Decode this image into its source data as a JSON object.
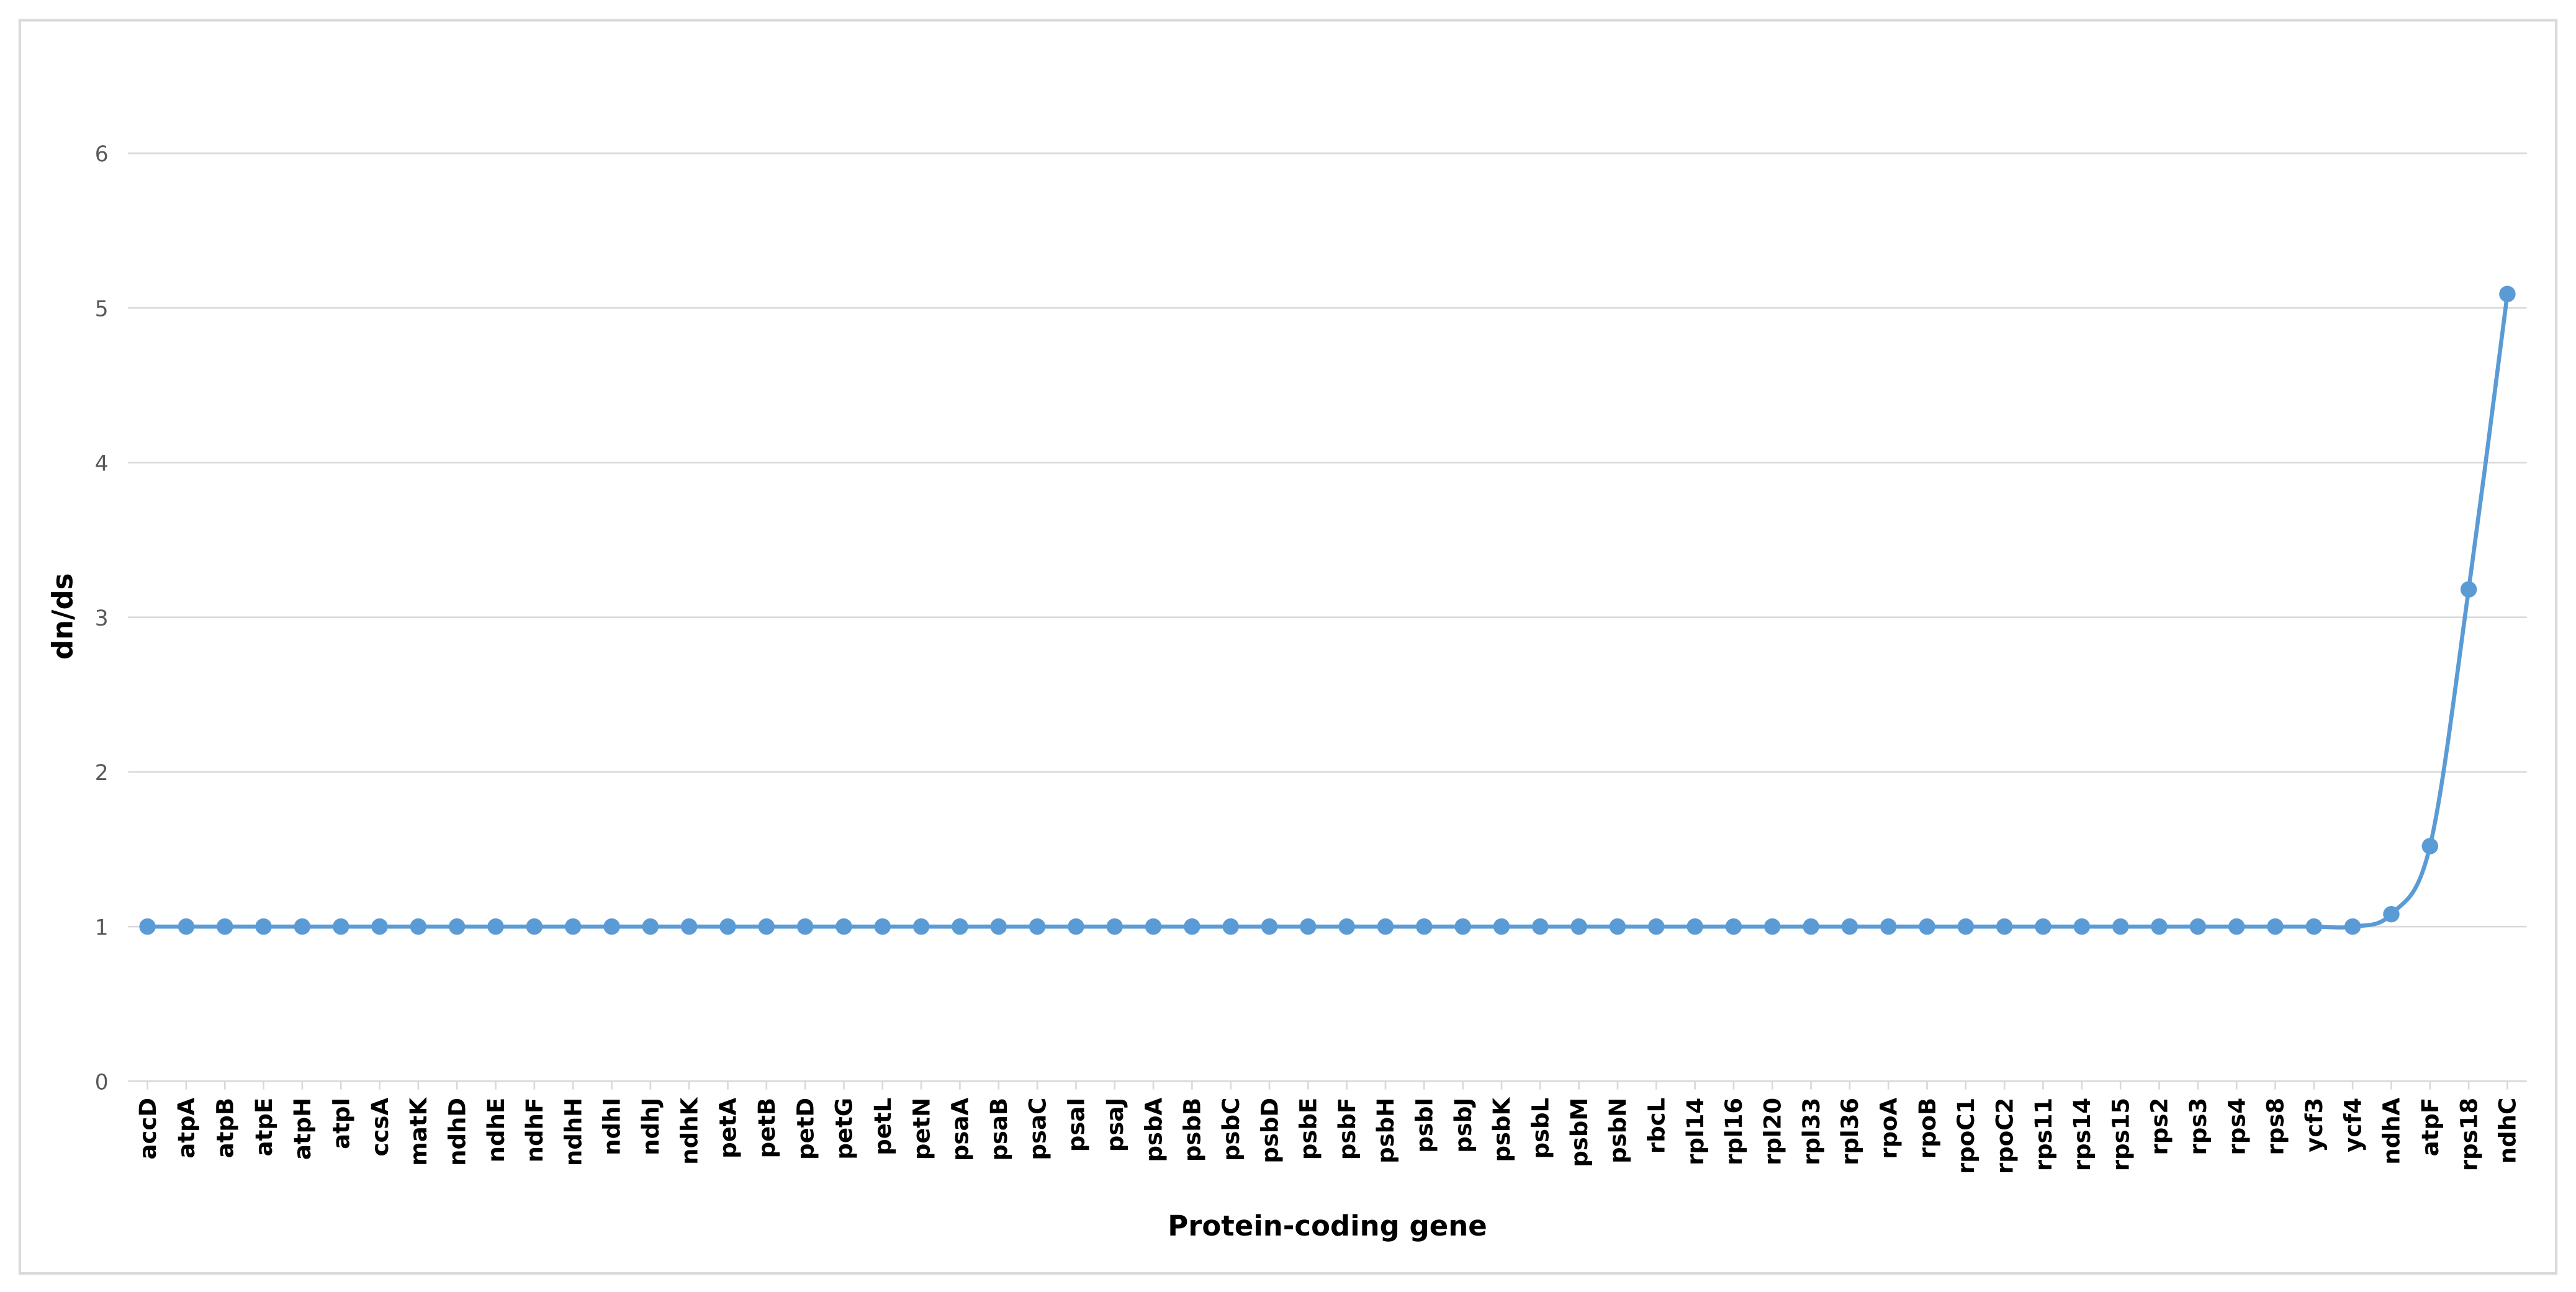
{
  "chart_data": {
    "type": "line",
    "x_label": "Protein-coding gene",
    "y_label": "dn/ds",
    "categories": [
      "accD",
      "atpA",
      "atpB",
      "atpE",
      "atpH",
      "atpI",
      "ccsA",
      "matK",
      "ndhD",
      "ndhE",
      "ndhF",
      "ndhH",
      "ndhI",
      "ndhJ",
      "ndhK",
      "petA",
      "petB",
      "petD",
      "petG",
      "petL",
      "petN",
      "psaA",
      "psaB",
      "psaC",
      "psaI",
      "psaJ",
      "psbA",
      "psbB",
      "psbC",
      "psbD",
      "psbE",
      "psbF",
      "psbH",
      "psbI",
      "psbJ",
      "psbK",
      "psbL",
      "psbM",
      "psbN",
      "rbcL",
      "rpl14",
      "rpl16",
      "rpl20",
      "rpl33",
      "rpl36",
      "rpoA",
      "rpoB",
      "rpoC1",
      "rpoC2",
      "rps11",
      "rps14",
      "rps15",
      "rps2",
      "rps3",
      "rps4",
      "rps8",
      "ycf3",
      "ycf4",
      "ndhA",
      "atpF",
      "rps18",
      "ndhC"
    ],
    "values": [
      1,
      1,
      1,
      1,
      1,
      1,
      1,
      1,
      1,
      1,
      1,
      1,
      1,
      1,
      1,
      1,
      1,
      1,
      1,
      1,
      1,
      1,
      1,
      1,
      1,
      1,
      1,
      1,
      1,
      1,
      1,
      1,
      1,
      1,
      1,
      1,
      1,
      1,
      1,
      1,
      1,
      1,
      1,
      1,
      1,
      1,
      1,
      1,
      1,
      1,
      1,
      1,
      1,
      1,
      1,
      1,
      1,
      1,
      1.08,
      1.52,
      3.18,
      5.09
    ],
    "color": "#5b9bd5",
    "ylim": [
      0,
      6
    ],
    "yticks": [
      0,
      1,
      2,
      3,
      4,
      5,
      6
    ],
    "grid": true
  }
}
